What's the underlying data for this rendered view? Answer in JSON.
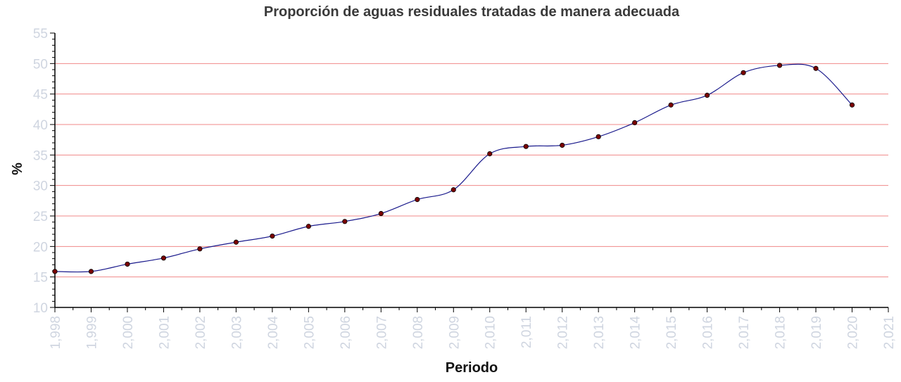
{
  "chart_data": {
    "type": "line",
    "title": "Proporción de aguas residuales tratadas de manera adecuada",
    "xlabel": "Periodo",
    "ylabel": "%",
    "xlim": [
      1998,
      2021
    ],
    "ylim": [
      10,
      55
    ],
    "x_ticks": [
      "1,998",
      "1,999",
      "2,000",
      "2,001",
      "2,002",
      "2,003",
      "2,004",
      "2,005",
      "2,006",
      "2,007",
      "2,008",
      "2,009",
      "2,010",
      "2,011",
      "2,012",
      "2,013",
      "2,014",
      "2,015",
      "2,016",
      "2,017",
      "2,018",
      "2,019",
      "2,020",
      "2,021"
    ],
    "y_ticks": [
      "10",
      "15",
      "20",
      "25",
      "30",
      "35",
      "40",
      "45",
      "50",
      "55"
    ],
    "gridlines": [
      15,
      20,
      25,
      30,
      35,
      40,
      45,
      50
    ],
    "series": [
      {
        "x": [
          1998,
          1999,
          2000,
          2001,
          2002,
          2003,
          2004,
          2005,
          2006,
          2007,
          2008,
          2009,
          2010,
          2011,
          2012,
          2013,
          2014,
          2015,
          2016,
          2017,
          2018,
          2019,
          2020
        ],
        "y": [
          15.9,
          15.9,
          17.1,
          18.1,
          19.6,
          20.7,
          21.7,
          23.3,
          24.1,
          25.4,
          27.7,
          29.3,
          35.2,
          36.4,
          36.6,
          38.0,
          40.3,
          43.2,
          44.8,
          48.5,
          49.7,
          49.2,
          43.2
        ]
      }
    ],
    "colors": {
      "line": "#1a1a8c",
      "marker": "#7a0000",
      "grid": "#f08a8a",
      "tick_text": "#cfd5e0"
    },
    "grid": true,
    "legend": "none"
  }
}
